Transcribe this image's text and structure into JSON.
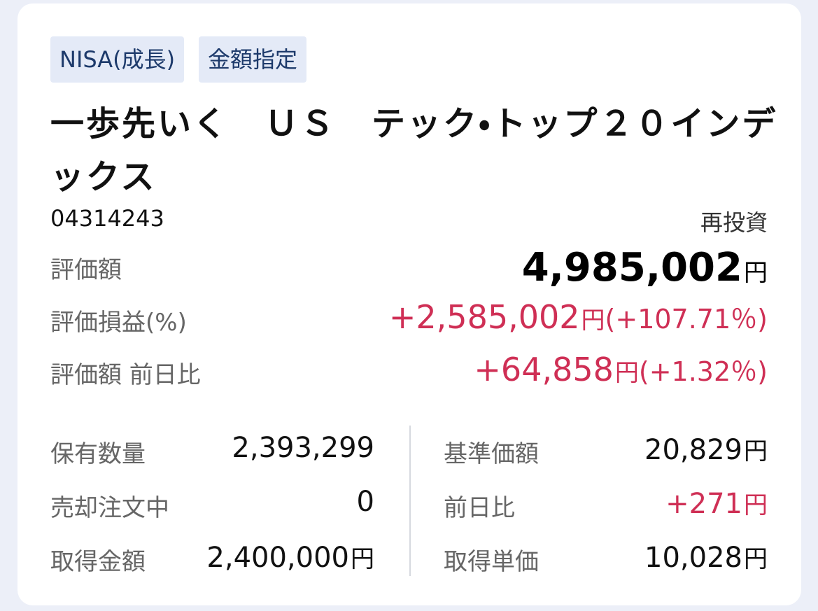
{
  "tags": [
    "NISA(成長)",
    "金額指定"
  ],
  "fund": {
    "name": "一歩先いく　ＵＳ　テック・トップ２０インデックス",
    "code": "04314243",
    "reinvest": "再投資"
  },
  "summary": [
    {
      "label": "評価額",
      "value": "4,985,002",
      "unit": "円"
    },
    {
      "label": "評価損益(%)",
      "value": "+2,585,002",
      "unit": "円",
      "pct": "(+107.71％)"
    },
    {
      "label": "評価額 前日比",
      "value": "+64,858",
      "unit": "円",
      "pct": "(+1.32％)"
    }
  ],
  "details_left": [
    {
      "label": "保有数量",
      "value": "2,393,299"
    },
    {
      "label": "売却注文中",
      "value": "0"
    },
    {
      "label": "取得金額",
      "value": "2,400,000",
      "unit": "円"
    }
  ],
  "details_right": [
    {
      "label": "基準価額",
      "value": "20,829",
      "unit": "円"
    },
    {
      "label": "前日比",
      "value": "+271",
      "unit": "円"
    },
    {
      "label": "取得単価",
      "value": "10,028",
      "unit": "円"
    }
  ]
}
